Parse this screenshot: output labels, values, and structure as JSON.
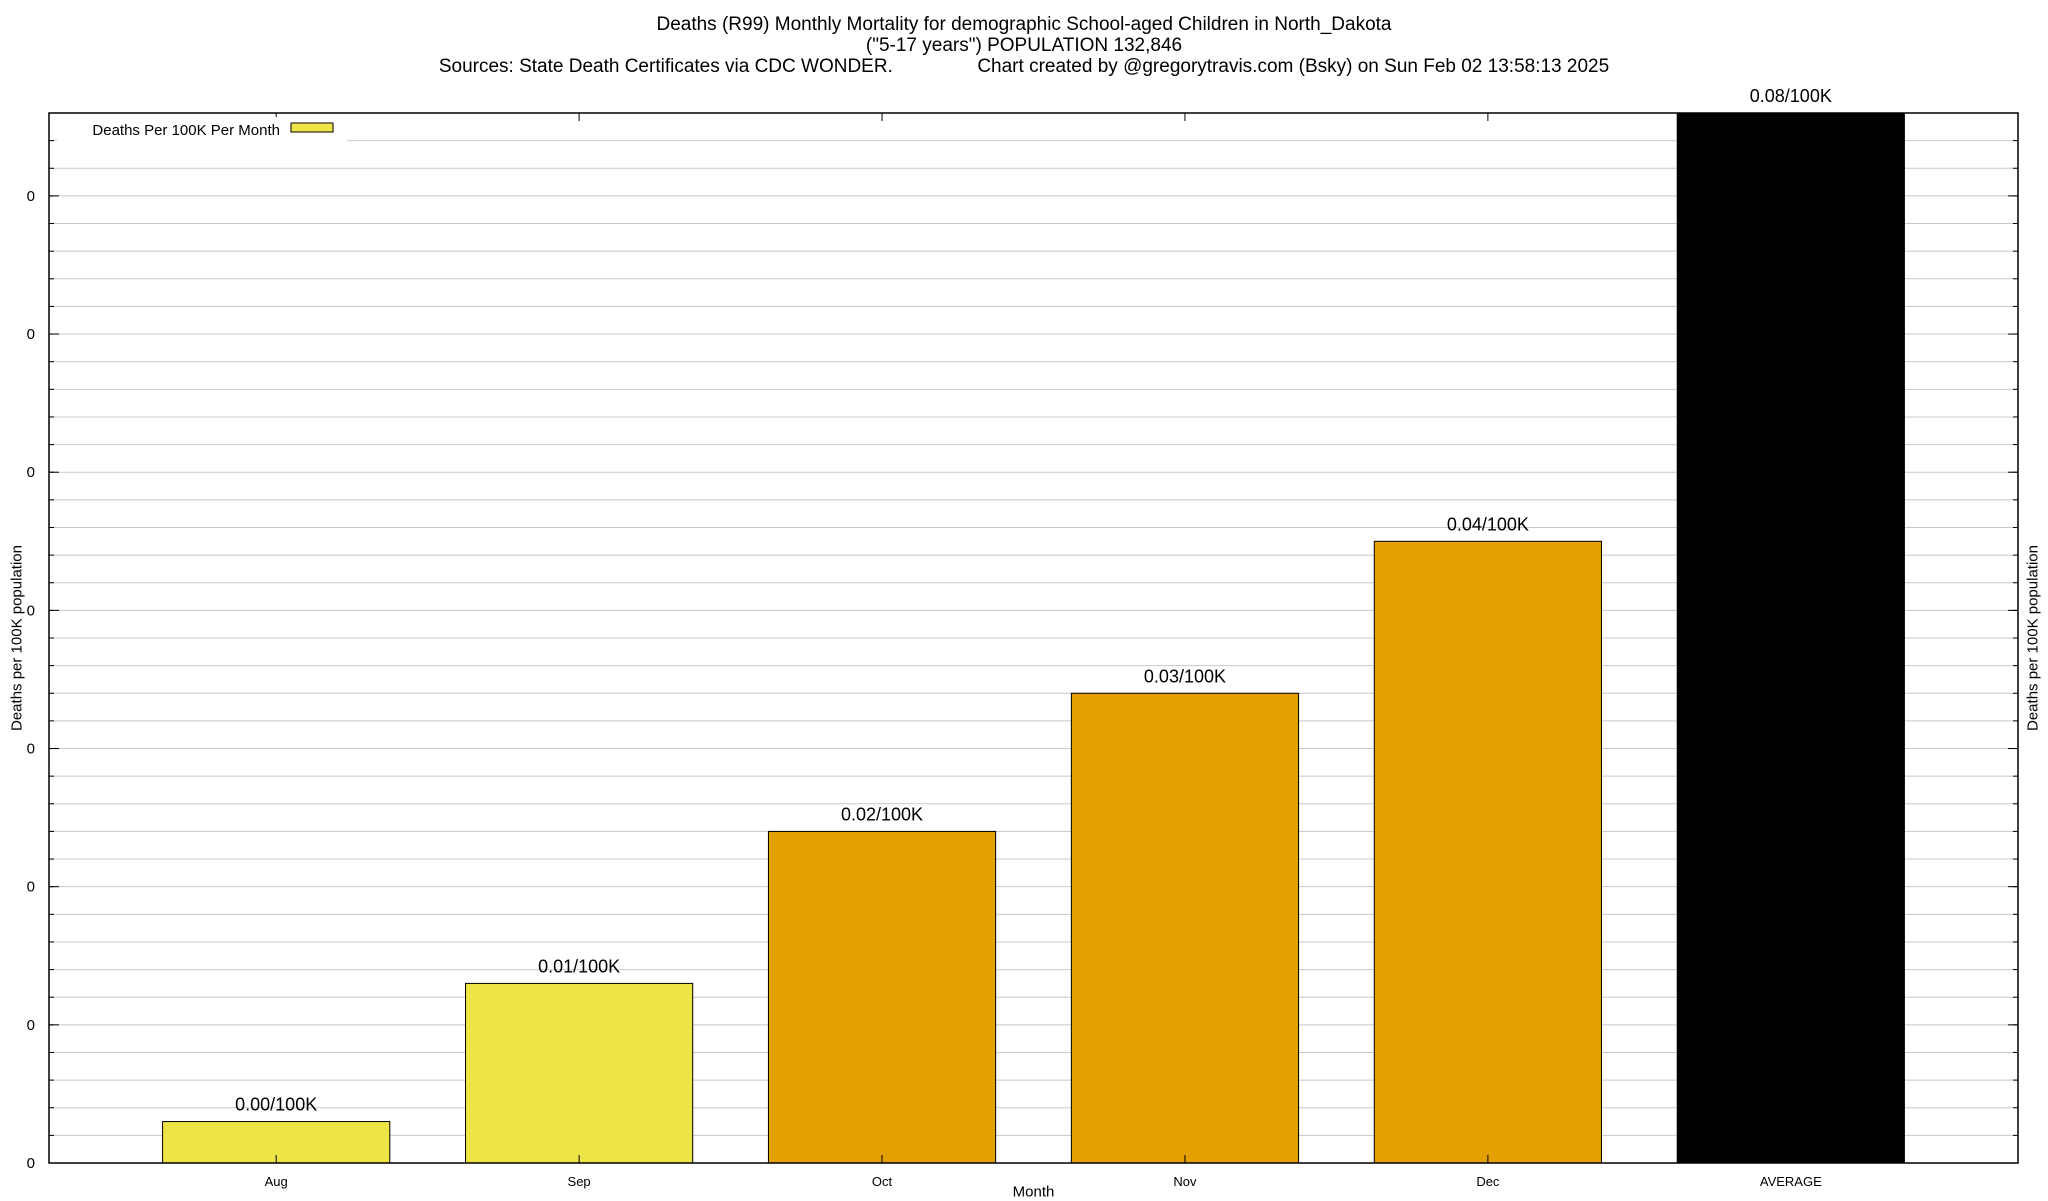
{
  "chart_data": {
    "type": "bar",
    "title_lines": [
      "Deaths (R99) Monthly Mortality for demographic School-aged Children in North_Dakota",
      "(\"5-17 years\") POPULATION 132,846"
    ],
    "sources": "Sources: State Death Certificates via CDC WONDER.",
    "credit": "Chart created by @gregorytravis.com (Bsky) on Sun Feb 02 13:58:13 2025",
    "xlabel": "Month",
    "ylabel": "Deaths per 100K population",
    "ylabel_right": "Deaths per 100K population",
    "categories": [
      "Aug",
      "Sep",
      "Oct",
      "Nov",
      "Dec",
      "AVERAGE"
    ],
    "values": [
      0.003,
      0.013,
      0.024,
      0.034,
      0.045,
      0.076
    ],
    "data_labels": [
      "0.00/100K",
      "0.01/100K",
      "0.02/100K",
      "0.03/100K",
      "0.04/100K",
      "0.08/100K"
    ],
    "bar_colors": [
      "#efe445",
      "#efe445",
      "#e4a000",
      "#e4a000",
      "#e4a000",
      "#000000"
    ],
    "ylim": [
      0,
      0.076
    ],
    "y_ticks": [
      0,
      0.01,
      0.02,
      0.03,
      0.04,
      0.05,
      0.06,
      0.07
    ],
    "y_tick_labels": [
      "0",
      "0",
      "0",
      "0",
      "0",
      "0",
      "0",
      "0"
    ],
    "grid": true,
    "legend": {
      "position": "top-left",
      "entries": [
        {
          "label": "Deaths Per 100K Per Month",
          "color": "#efe445"
        }
      ]
    }
  }
}
